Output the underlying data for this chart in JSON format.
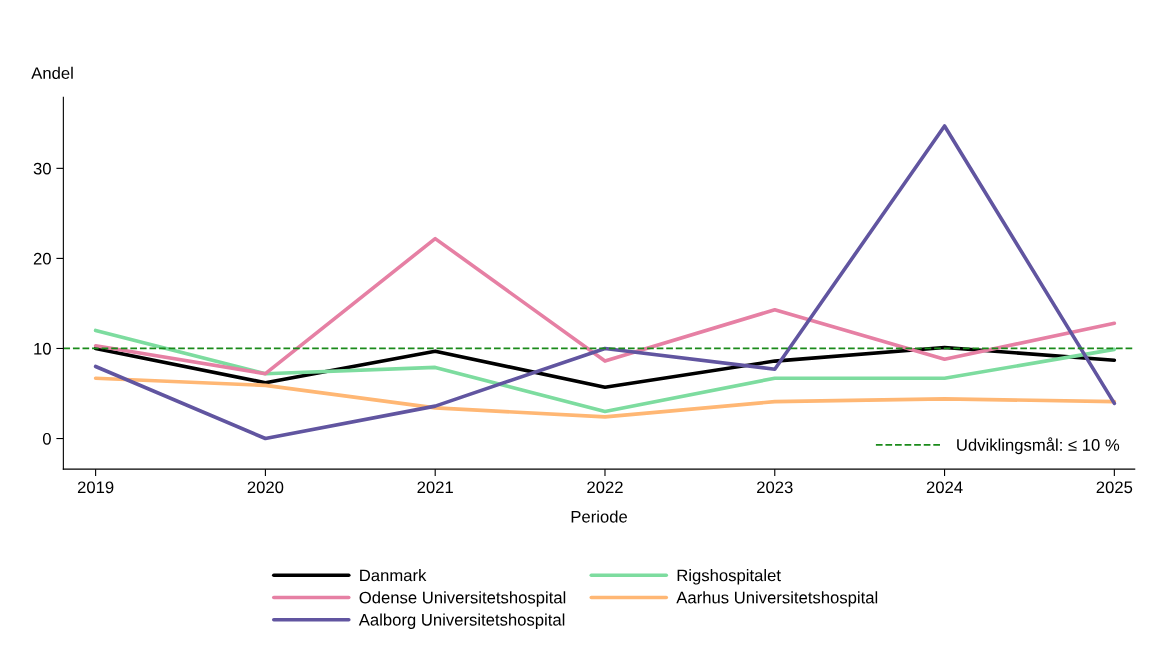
{
  "chart_data": {
    "type": "line",
    "xlabel": "Periode",
    "ylabel": "Andel",
    "x": [
      2019,
      2020,
      2021,
      2022,
      2023,
      2024,
      2025
    ],
    "xlim": [
      2018.81,
      2025.12
    ],
    "xticks": [
      2019,
      2020,
      2021,
      2022,
      2023,
      2024,
      2025
    ],
    "ylim": [
      -3.4,
      37.9
    ],
    "yticks": [
      0,
      10,
      20,
      30
    ],
    "series": [
      {
        "name": "Danmark",
        "color": "#000000",
        "values": [
          10.0,
          6.2,
          9.7,
          5.7,
          8.6,
          10.1,
          8.7
        ]
      },
      {
        "name": "Rigshospitalet",
        "color": "#7ddc9f",
        "values": [
          12.0,
          7.2,
          7.9,
          3.0,
          6.7,
          6.7,
          9.9
        ]
      },
      {
        "name": "Odense Universitetshospital",
        "color": "#e680a4",
        "values": [
          10.3,
          7.2,
          22.2,
          8.6,
          14.3,
          8.8,
          12.8
        ]
      },
      {
        "name": "Aarhus Universitetshospital",
        "color": "#ffb774",
        "values": [
          6.7,
          5.9,
          3.4,
          2.4,
          4.1,
          4.4,
          4.1
        ]
      },
      {
        "name": "Aalborg Universitetshospital",
        "color": "#6155a0",
        "values": [
          8.0,
          0.0,
          3.6,
          10.0,
          7.7,
          34.7,
          3.9
        ]
      }
    ],
    "ref_lines": [
      {
        "axis": "y",
        "value": 10,
        "label": "Udviklingsmål: ≤ 10 %",
        "color": "#1a8a1a",
        "line_style": "dashed"
      }
    ],
    "legend": "bottom",
    "grid": false,
    "marker": "none",
    "line_style": "solid"
  }
}
